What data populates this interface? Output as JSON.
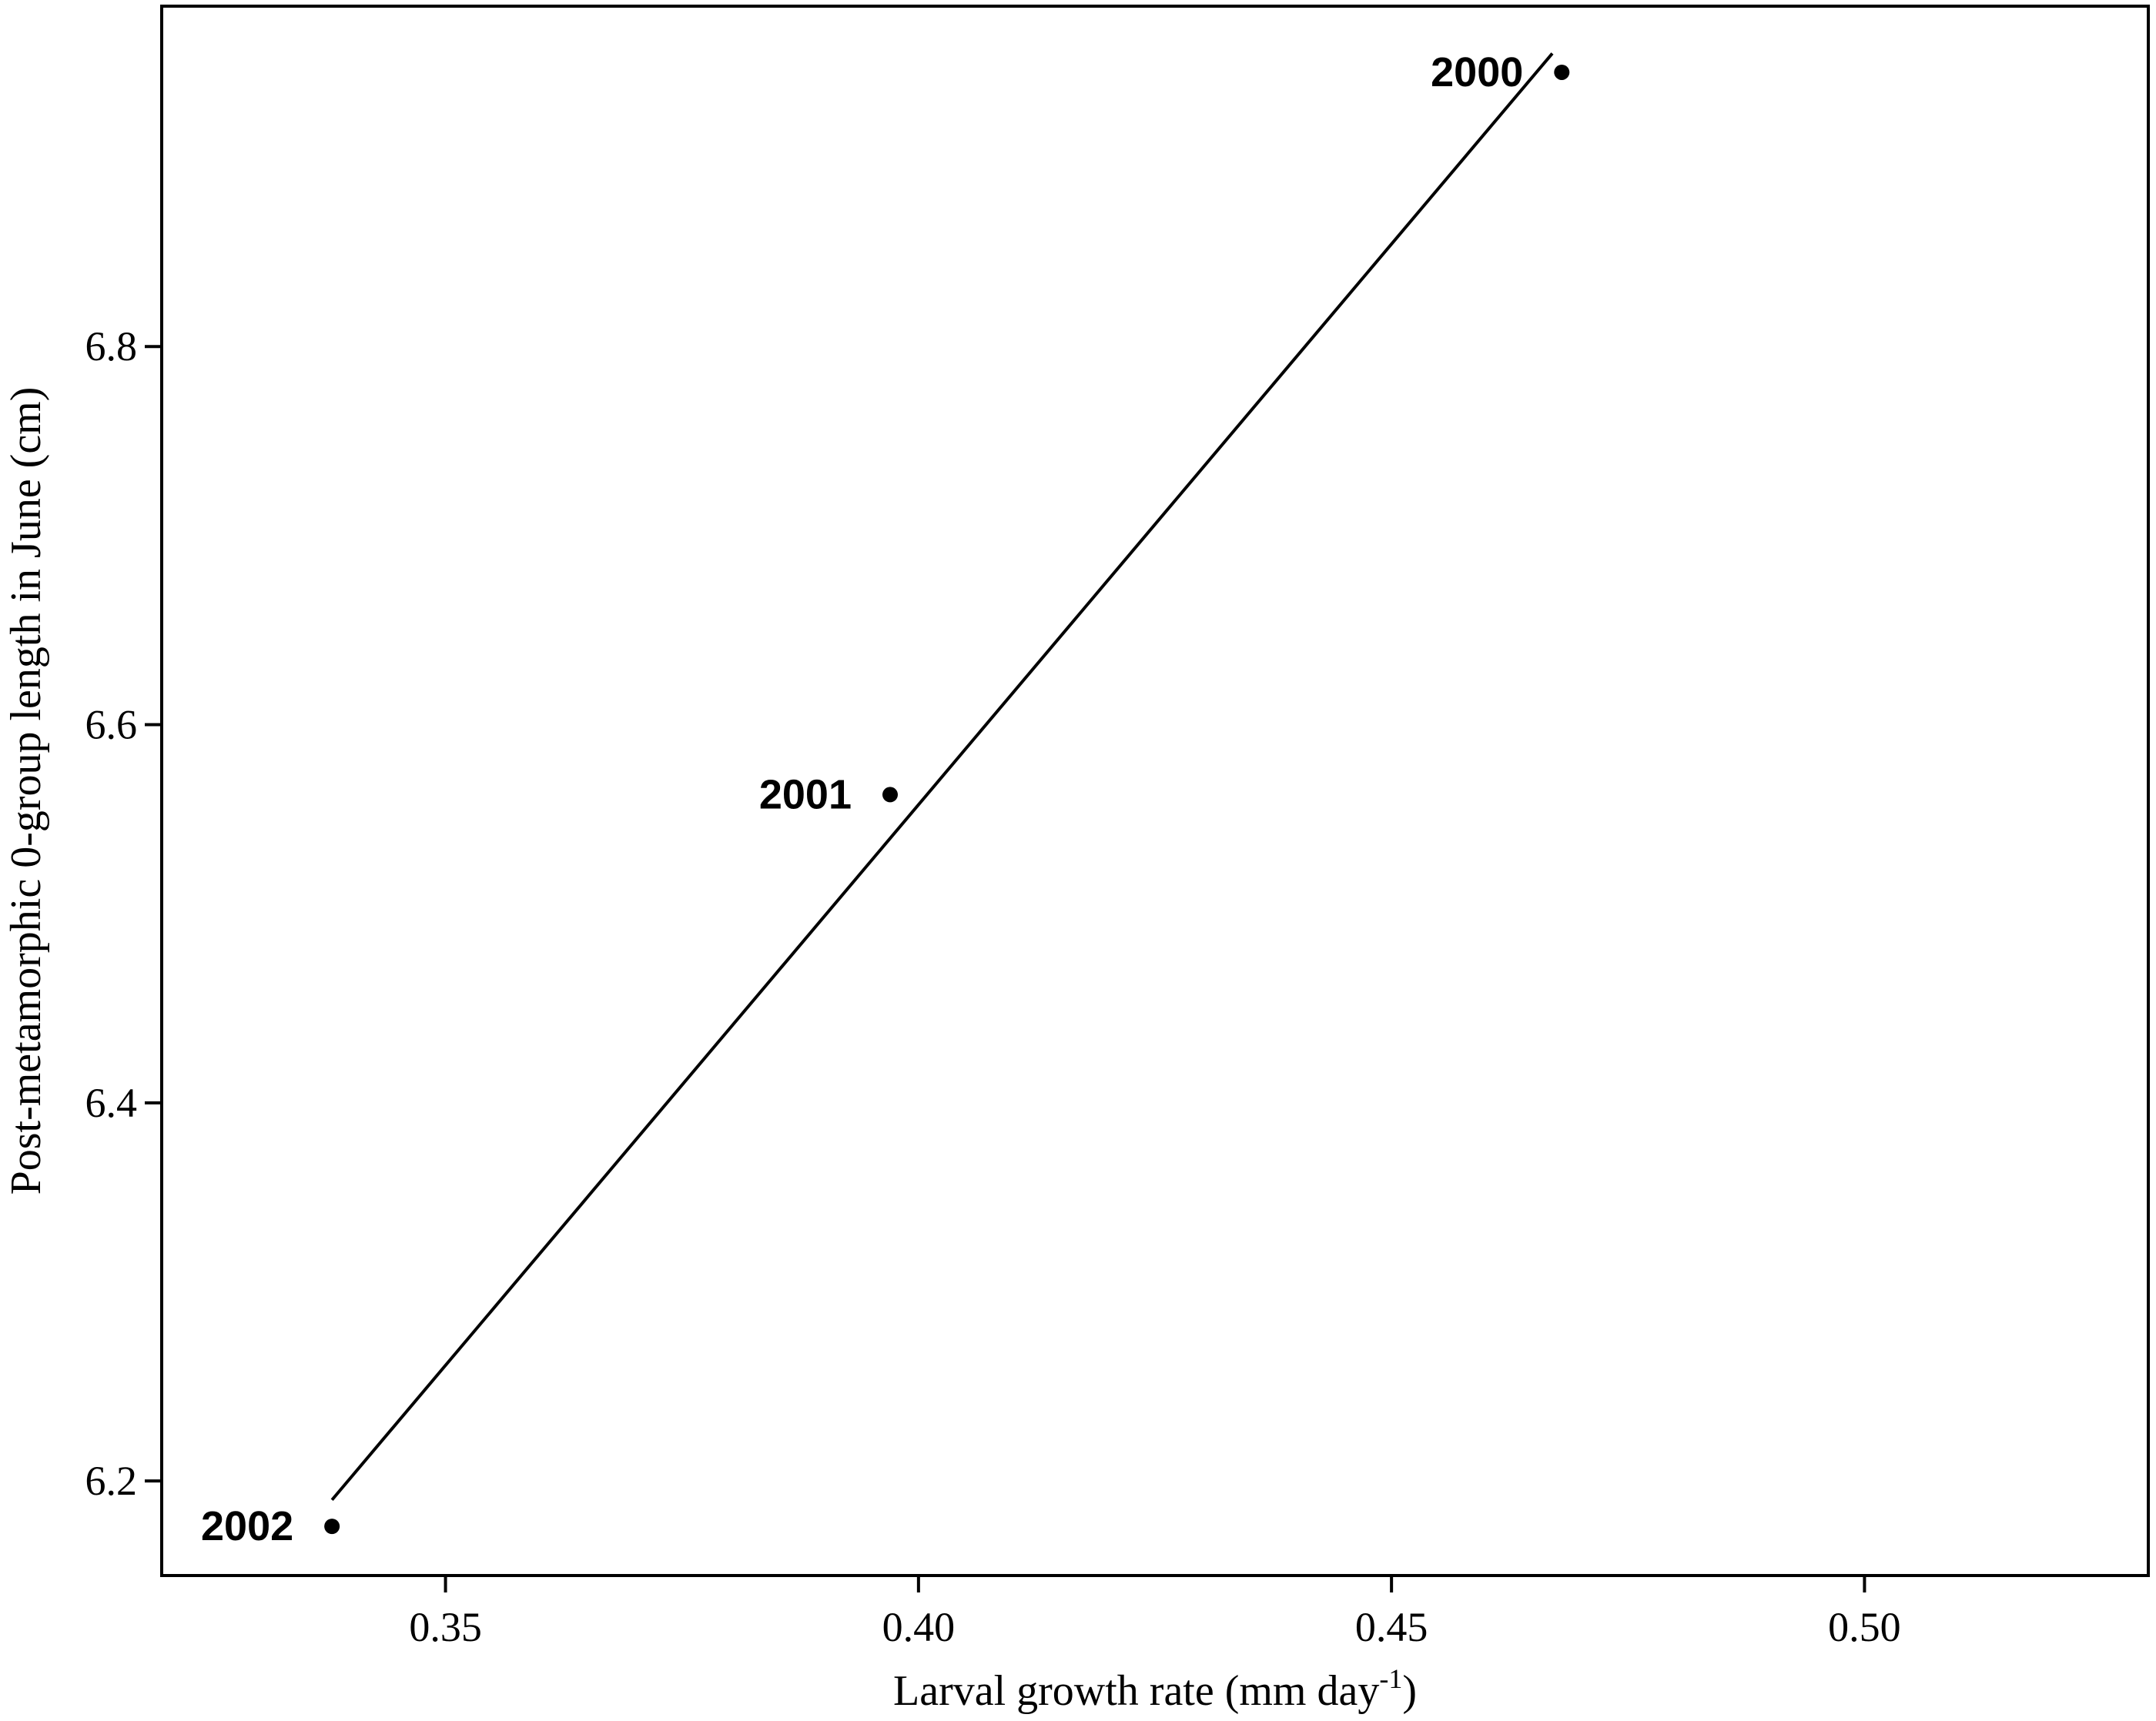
{
  "chart_data": {
    "type": "scatter",
    "title": "",
    "xlabel": "Larval growth rate (mm day",
    "xlabel_superscript": "-1",
    "xlabel_suffix": ")",
    "ylabel": "Post-metamorphic 0-group length in June (cm)",
    "xlim": [
      0.32,
      0.53
    ],
    "ylim": [
      6.15,
      6.98
    ],
    "xticks": [
      0.35,
      0.4,
      0.45,
      0.5
    ],
    "xtick_labels": [
      "0.35",
      "0.40",
      "0.45",
      "0.50"
    ],
    "yticks": [
      6.2,
      6.4,
      6.6,
      6.8
    ],
    "ytick_labels": [
      "6.2",
      "6.4",
      "6.6",
      "6.8"
    ],
    "grid": false,
    "legend": "none",
    "points": [
      {
        "x": 0.468,
        "y": 6.945,
        "label": "2000"
      },
      {
        "x": 0.397,
        "y": 6.563,
        "label": "2001"
      },
      {
        "x": 0.338,
        "y": 6.176,
        "label": "2002"
      }
    ],
    "fit_line": {
      "x": [
        0.338,
        0.467
      ],
      "y": [
        6.19,
        6.955
      ]
    },
    "colors": {
      "points": "#000000",
      "line": "#000000",
      "axes": "#000000"
    }
  }
}
